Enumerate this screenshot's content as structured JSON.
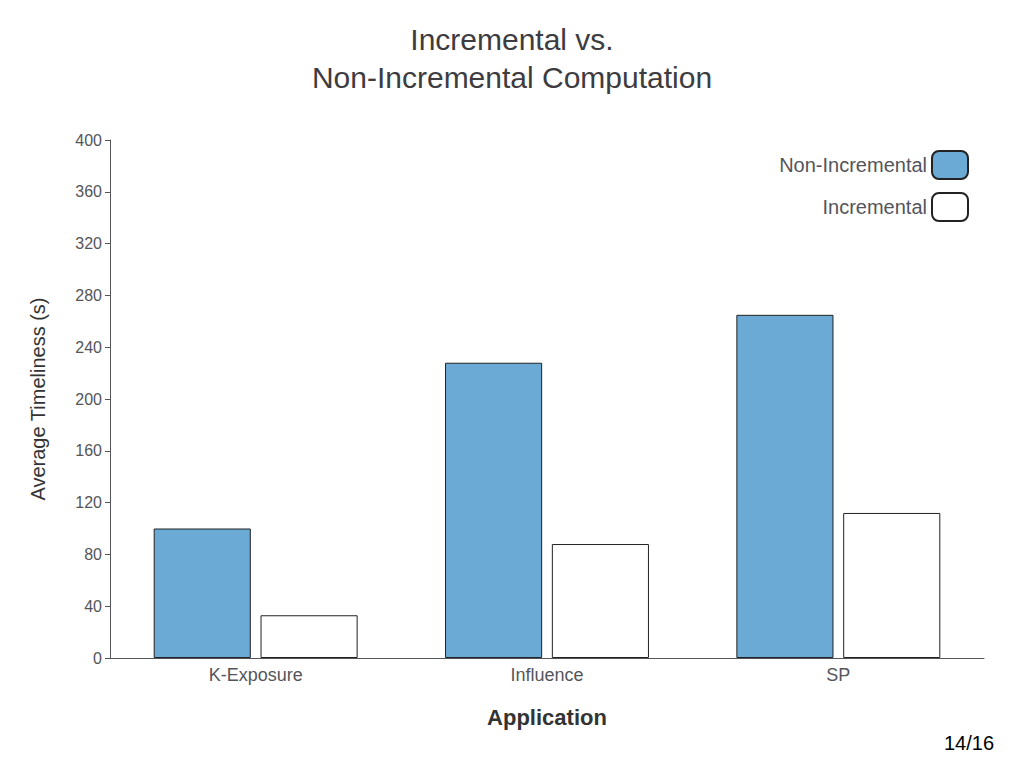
{
  "chart_data": {
    "type": "bar",
    "title": "Incremental vs.\nNon-Incremental Computation",
    "xlabel": "Application",
    "ylabel": "Average Timeliness (s)",
    "categories": [
      "K-Exposure",
      "Influence",
      "SP"
    ],
    "series": [
      {
        "name": "Non-Incremental",
        "color": "#6aaad4",
        "values": [
          100,
          228,
          265
        ]
      },
      {
        "name": "Incremental",
        "color": "#ffffff",
        "values": [
          33,
          88,
          112
        ]
      }
    ],
    "ylim": [
      0,
      400
    ],
    "yticks": [
      0,
      40,
      80,
      120,
      160,
      200,
      240,
      280,
      320,
      360,
      400
    ],
    "grid": false,
    "legend": "upper right",
    "annotation": "14/16"
  }
}
